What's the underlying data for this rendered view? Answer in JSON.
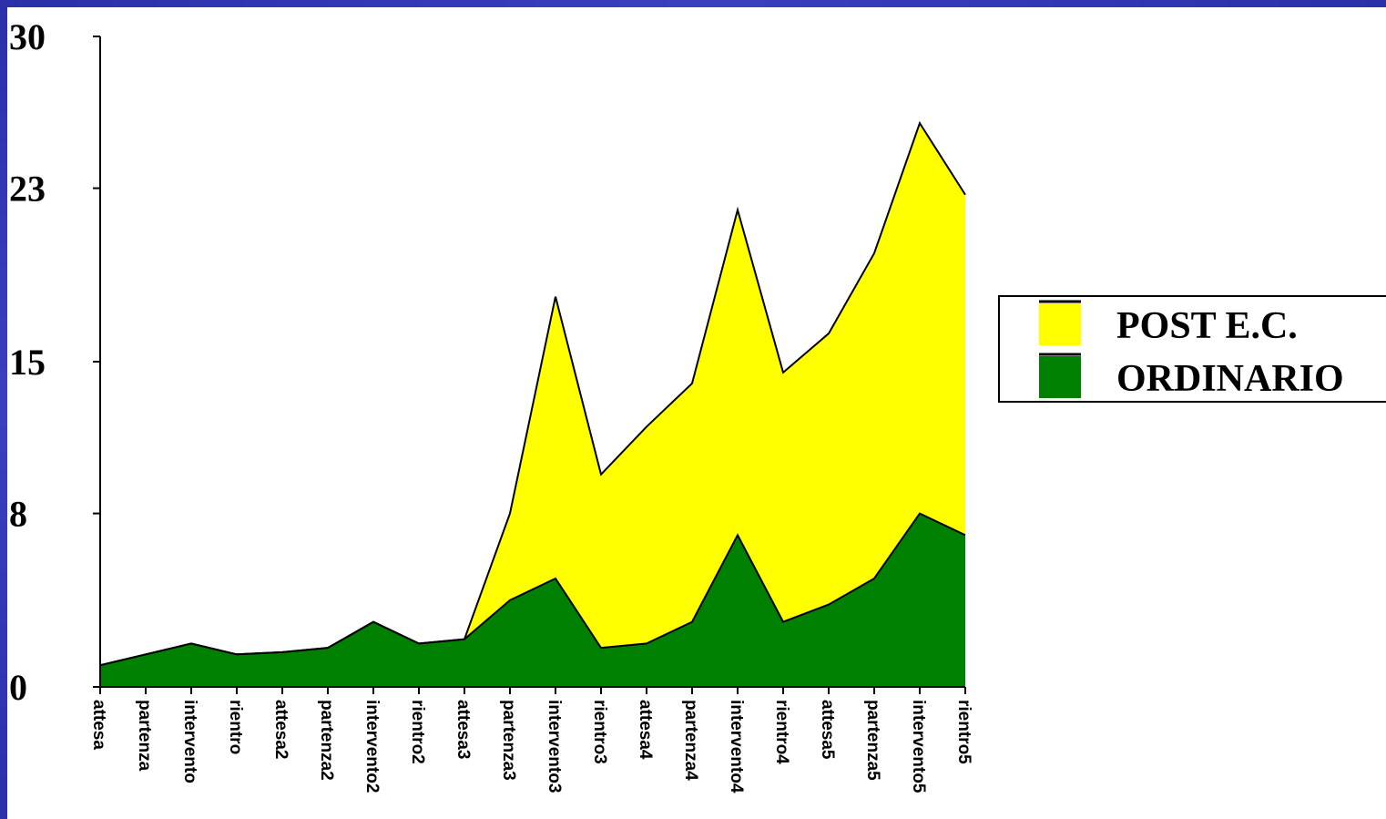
{
  "chart_data": {
    "type": "area",
    "stacked": true,
    "categories": [
      "attesa",
      "partenza",
      "intervento",
      "rientro",
      "attesa2",
      "partenza2",
      "intervento2",
      "rientro2",
      "attesa3",
      "partenza3",
      "intervento3",
      "rientro3",
      "attesa4",
      "partenza4",
      "intervento4",
      "rientro4",
      "attesa5",
      "partenza5",
      "intervento5",
      "rientro5"
    ],
    "series": [
      {
        "name": "ORDINARIO",
        "color": "#008000",
        "values": [
          1.0,
          1.5,
          2.0,
          1.5,
          1.6,
          1.8,
          3.0,
          2.0,
          2.2,
          4.0,
          5.0,
          1.8,
          2.0,
          3.0,
          7.0,
          3.0,
          3.8,
          5.0,
          8.0,
          7.0
        ]
      },
      {
        "name": "POST E.C.",
        "color": "#ffff00",
        "values": [
          0,
          0,
          0,
          0,
          0,
          0,
          0,
          0,
          0,
          4.0,
          13.0,
          8.0,
          10.0,
          11.0,
          15.0,
          11.5,
          12.5,
          15.0,
          18.0,
          15.7
        ]
      }
    ],
    "yticks": [
      "0",
      "8",
      "15",
      "23",
      "30"
    ],
    "ylim": [
      0,
      30
    ],
    "legend": [
      "POST E.C.",
      "ORDINARIO"
    ],
    "legend_position": "right",
    "grid": false
  }
}
